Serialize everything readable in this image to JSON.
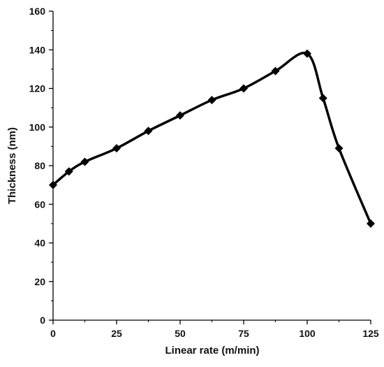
{
  "chart_data": {
    "type": "line",
    "xlabel": "Linear rate (m/min)",
    "ylabel": "Thickness (nm)",
    "xlim": [
      0,
      125
    ],
    "ylim": [
      0,
      160
    ],
    "x_ticks": [
      0,
      25,
      50,
      75,
      100,
      125
    ],
    "y_ticks": [
      0,
      20,
      40,
      60,
      80,
      100,
      120,
      140,
      160
    ],
    "grid": false,
    "smooth": true,
    "marker": "diamond",
    "line_color": "#000000",
    "series": [
      {
        "x": [
          0,
          6.25,
          12.5,
          25,
          37.5,
          50,
          62.5,
          75,
          87.5,
          100,
          106.25,
          112.5,
          125
        ],
        "y": [
          70,
          77,
          82,
          89,
          98,
          106,
          114,
          120,
          129,
          138,
          115,
          89,
          50
        ]
      }
    ]
  }
}
